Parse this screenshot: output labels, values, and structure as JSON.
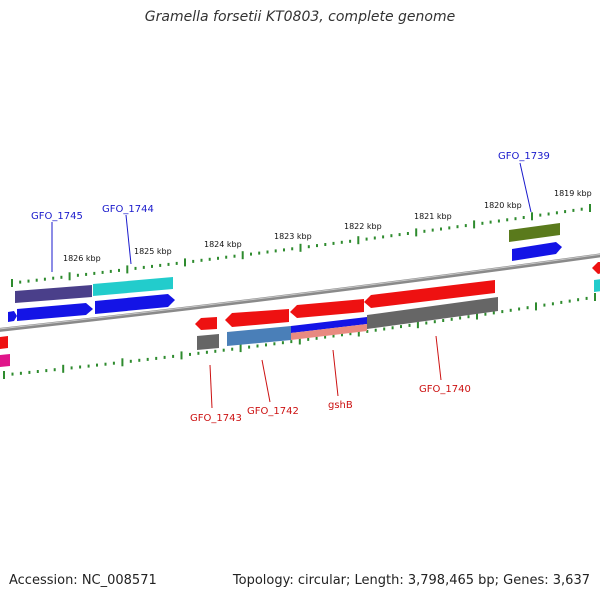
{
  "title": "Gramella forsetii KT0803, complete genome",
  "footer": {
    "accession": "Accession: NC_008571",
    "stats": "Topology: circular; Length: 3,798,465 bp; Genes: 3,637"
  },
  "colors": {
    "backbone": "#8a8a8a",
    "ticks": "#2e8b2e",
    "forward_label": "#1a1acc",
    "reverse_label": "#cc1111",
    "red": "#ee1111",
    "blue": "#1414e6",
    "cyan": "#22cccc",
    "purple": "#4a3f8a",
    "olive": "#5a7a1c",
    "gray": "#666666",
    "steel": "#4a7fb8",
    "salmon": "#e88a80",
    "magenta": "#e0158a"
  },
  "ruler_labels": [
    "1826 kbp",
    "1825 kbp",
    "1824 kbp",
    "1823 kbp",
    "1822 kbp",
    "1821 kbp",
    "1820 kbp",
    "1819 kbp"
  ],
  "gene_labels": {
    "forward": [
      "GFO_1745",
      "GFO_1744",
      "GFO_1739"
    ],
    "reverse": [
      "GFO_1743",
      "GFO_1742",
      "gshB",
      "GFO_1740"
    ]
  }
}
